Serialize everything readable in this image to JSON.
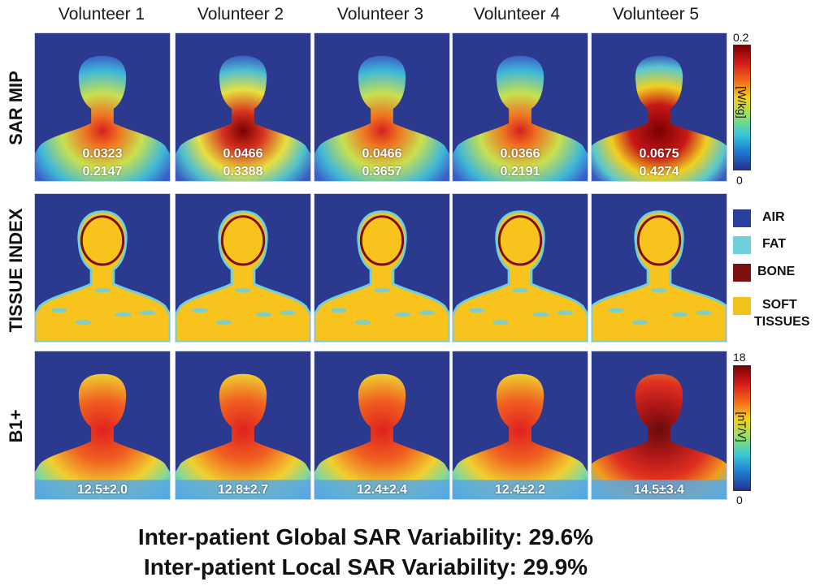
{
  "columns": [
    "Volunteer 1",
    "Volunteer 2",
    "Volunteer 3",
    "Volunteer 4",
    "Volunteer 5"
  ],
  "rows": [
    "SAR MIP",
    "TISSUE INDEX",
    "B1+"
  ],
  "sar_values": [
    {
      "global": "0.0323",
      "local": "0.2147"
    },
    {
      "global": "0.0466",
      "local": "0.3388"
    },
    {
      "global": "0.0466",
      "local": "0.3657"
    },
    {
      "global": "0.0366",
      "local": "0.2191"
    },
    {
      "global": "0.0675",
      "local": "0.4274"
    }
  ],
  "b1_values": [
    "12.5±2.0",
    "12.8±2.7",
    "12.4±2.4",
    "12.4±2.2",
    "14.5±3.4"
  ],
  "colorbar_sar": {
    "max": "0.2",
    "min": "0",
    "unit": "[W/kg]"
  },
  "colorbar_b1": {
    "max": "18",
    "min": "0",
    "unit": "[nT/V]"
  },
  "legend": [
    {
      "label": "AIR",
      "color": "#2b3fa0"
    },
    {
      "label": "FAT",
      "color": "#6fd0dc"
    },
    {
      "label": "BONE",
      "color": "#7a1010"
    },
    {
      "label": "SOFT",
      "label2": "TISSUES",
      "color": "#f2c21a"
    }
  ],
  "footer": {
    "line1": "Inter-patient Global SAR Variability: 29.6%",
    "line2": "Inter-patient Local SAR Variability: 29.9%"
  },
  "colors": {
    "background_blue": "#2b3a8f",
    "soft_tissue": "#f7c31c",
    "fat": "#6fd0dc",
    "bone": "#7a1010"
  }
}
